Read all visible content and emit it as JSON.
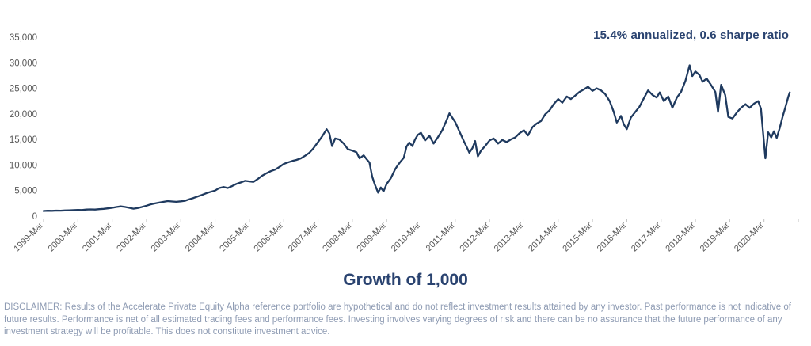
{
  "colors": {
    "navy-text": "#2a4370",
    "line-navy": "#1f3a5f",
    "axis-label-gray": "#595959",
    "tick-gray": "#bfbfbf",
    "disclaimer-gray": "#8e9bb3"
  },
  "header": {
    "annotation": "15.4% annualized, 0.6 sharpe ratio"
  },
  "footer": {
    "title": "Growth of 1,000",
    "disclaimer": "DISCLAIMER: Results of the Accelerate Private Equity Alpha reference portfolio are hypothetical and do not reflect investment results attained by any investor. Past performance is not indicative of future results. Performance is net of all estimated trading fees and performance fees. Investing involves varying degrees of risk and there can be no assurance that the future performance of any investment strategy will be profitable. This does not constitute investment advice."
  },
  "chart_data": {
    "type": "line",
    "title": "Growth of 1,000",
    "annotation": "15.4% annualized, 0.6 sharpe ratio",
    "xlabel": "",
    "ylabel": "",
    "grid": false,
    "legend": false,
    "ylim": [
      0,
      35000
    ],
    "y_tick_step": 5000,
    "y_tick_labels": [
      "0",
      "5,000",
      "10,000",
      "15,000",
      "20,000",
      "25,000",
      "30,000",
      "35,000"
    ],
    "x_tick_labels": [
      "1999-Mar",
      "2000-Mar",
      "2001-Mar",
      "2002-Mar",
      "2003-Mar",
      "2004-Mar",
      "2005-Mar",
      "2006-Mar",
      "2007-Mar",
      "2008-Mar",
      "2009-Mar",
      "2010-Mar",
      "2011-Mar",
      "2012-Mar",
      "2013-Mar",
      "2014-Mar",
      "2015-Mar",
      "2016-Mar",
      "2017-Mar",
      "2018-Mar",
      "2019-Mar",
      "2020-Mar"
    ],
    "x_start_year": 1999.17,
    "x_end_year": 2020.92,
    "x_axis_intervals": 22,
    "series": [
      {
        "name": "Growth of 1,000",
        "x": [
          1999.17,
          1999.29,
          1999.42,
          1999.54,
          1999.67,
          1999.79,
          1999.92,
          2000.04,
          2000.17,
          2000.29,
          2000.42,
          2000.54,
          2000.67,
          2000.79,
          2000.92,
          2001.04,
          2001.17,
          2001.29,
          2001.42,
          2001.54,
          2001.67,
          2001.79,
          2001.92,
          2002.04,
          2002.17,
          2002.29,
          2002.42,
          2002.54,
          2002.67,
          2002.79,
          2002.92,
          2003.04,
          2003.17,
          2003.29,
          2003.42,
          2003.54,
          2003.67,
          2003.79,
          2003.92,
          2004.04,
          2004.17,
          2004.29,
          2004.42,
          2004.54,
          2004.67,
          2004.79,
          2004.92,
          2005.04,
          2005.17,
          2005.29,
          2005.42,
          2005.54,
          2005.67,
          2005.79,
          2005.92,
          2006.04,
          2006.17,
          2006.29,
          2006.42,
          2006.54,
          2006.67,
          2006.79,
          2006.92,
          2007.04,
          2007.17,
          2007.29,
          2007.42,
          2007.5,
          2007.58,
          2007.67,
          2007.79,
          2007.92,
          2008.04,
          2008.17,
          2008.29,
          2008.38,
          2008.5,
          2008.58,
          2008.67,
          2008.75,
          2008.83,
          2008.92,
          2009.0,
          2009.08,
          2009.17,
          2009.29,
          2009.42,
          2009.5,
          2009.58,
          2009.67,
          2009.75,
          2009.83,
          2009.92,
          2010.0,
          2010.08,
          2010.17,
          2010.29,
          2010.42,
          2010.54,
          2010.67,
          2010.79,
          2010.92,
          2011.0,
          2011.08,
          2011.17,
          2011.29,
          2011.42,
          2011.5,
          2011.58,
          2011.67,
          2011.75,
          2011.83,
          2011.92,
          2012.04,
          2012.17,
          2012.29,
          2012.42,
          2012.54,
          2012.67,
          2012.79,
          2012.92,
          2013.04,
          2013.17,
          2013.29,
          2013.42,
          2013.54,
          2013.67,
          2013.79,
          2013.92,
          2014.04,
          2014.17,
          2014.29,
          2014.42,
          2014.54,
          2014.67,
          2014.79,
          2014.92,
          2015.04,
          2015.17,
          2015.29,
          2015.42,
          2015.54,
          2015.67,
          2015.79,
          2015.88,
          2016.0,
          2016.08,
          2016.17,
          2016.29,
          2016.42,
          2016.54,
          2016.67,
          2016.79,
          2016.92,
          2017.04,
          2017.13,
          2017.25,
          2017.38,
          2017.5,
          2017.63,
          2017.75,
          2017.88,
          2018.0,
          2018.08,
          2018.17,
          2018.29,
          2018.38,
          2018.5,
          2018.63,
          2018.75,
          2018.83,
          2018.92,
          2019.04,
          2019.13,
          2019.25,
          2019.38,
          2019.5,
          2019.63,
          2019.75,
          2019.88,
          2020.0,
          2020.08,
          2020.21,
          2020.29,
          2020.38,
          2020.46,
          2020.54,
          2020.63,
          2020.71,
          2020.79,
          2020.88,
          2020.92
        ],
        "y": [
          1000,
          1060,
          1030,
          1090,
          1070,
          1120,
          1150,
          1180,
          1230,
          1200,
          1280,
          1320,
          1290,
          1360,
          1430,
          1520,
          1620,
          1780,
          1900,
          1800,
          1620,
          1450,
          1600,
          1800,
          2050,
          2300,
          2500,
          2650,
          2800,
          2950,
          2870,
          2800,
          2900,
          3000,
          3300,
          3550,
          3850,
          4150,
          4500,
          4750,
          5000,
          5500,
          5700,
          5500,
          5900,
          6300,
          6600,
          6900,
          6800,
          6700,
          7300,
          7900,
          8400,
          8800,
          9100,
          9600,
          10200,
          10500,
          10800,
          11000,
          11300,
          11800,
          12400,
          13300,
          14500,
          15600,
          17000,
          16200,
          13700,
          15200,
          15000,
          14200,
          13100,
          12800,
          12500,
          11300,
          11900,
          11200,
          10500,
          7700,
          6100,
          4600,
          5600,
          4850,
          6300,
          7400,
          9200,
          10000,
          10700,
          11400,
          13600,
          14400,
          13700,
          15000,
          15900,
          16300,
          14800,
          15700,
          14200,
          15500,
          16800,
          18800,
          20100,
          19300,
          18400,
          16600,
          14700,
          13600,
          12400,
          13300,
          14700,
          11700,
          12800,
          13700,
          14800,
          15200,
          14200,
          14900,
          14500,
          15000,
          15400,
          16200,
          16800,
          15800,
          17400,
          18100,
          18600,
          19900,
          20700,
          21900,
          22900,
          22200,
          23400,
          22900,
          23600,
          24300,
          24800,
          25300,
          24500,
          25000,
          24600,
          23900,
          22500,
          20400,
          18300,
          19600,
          18000,
          17000,
          19300,
          20400,
          21400,
          23100,
          24600,
          23700,
          23200,
          24200,
          22500,
          23400,
          21200,
          23200,
          24300,
          26500,
          29500,
          27400,
          28300,
          27600,
          26300,
          26900,
          25600,
          24300,
          20400,
          25700,
          23700,
          19400,
          19100,
          20300,
          21200,
          21900,
          21200,
          22000,
          22500,
          21000,
          11300,
          16400,
          15400,
          16600,
          15300,
          17300,
          19400,
          21200,
          23400,
          24200
        ]
      }
    ]
  }
}
